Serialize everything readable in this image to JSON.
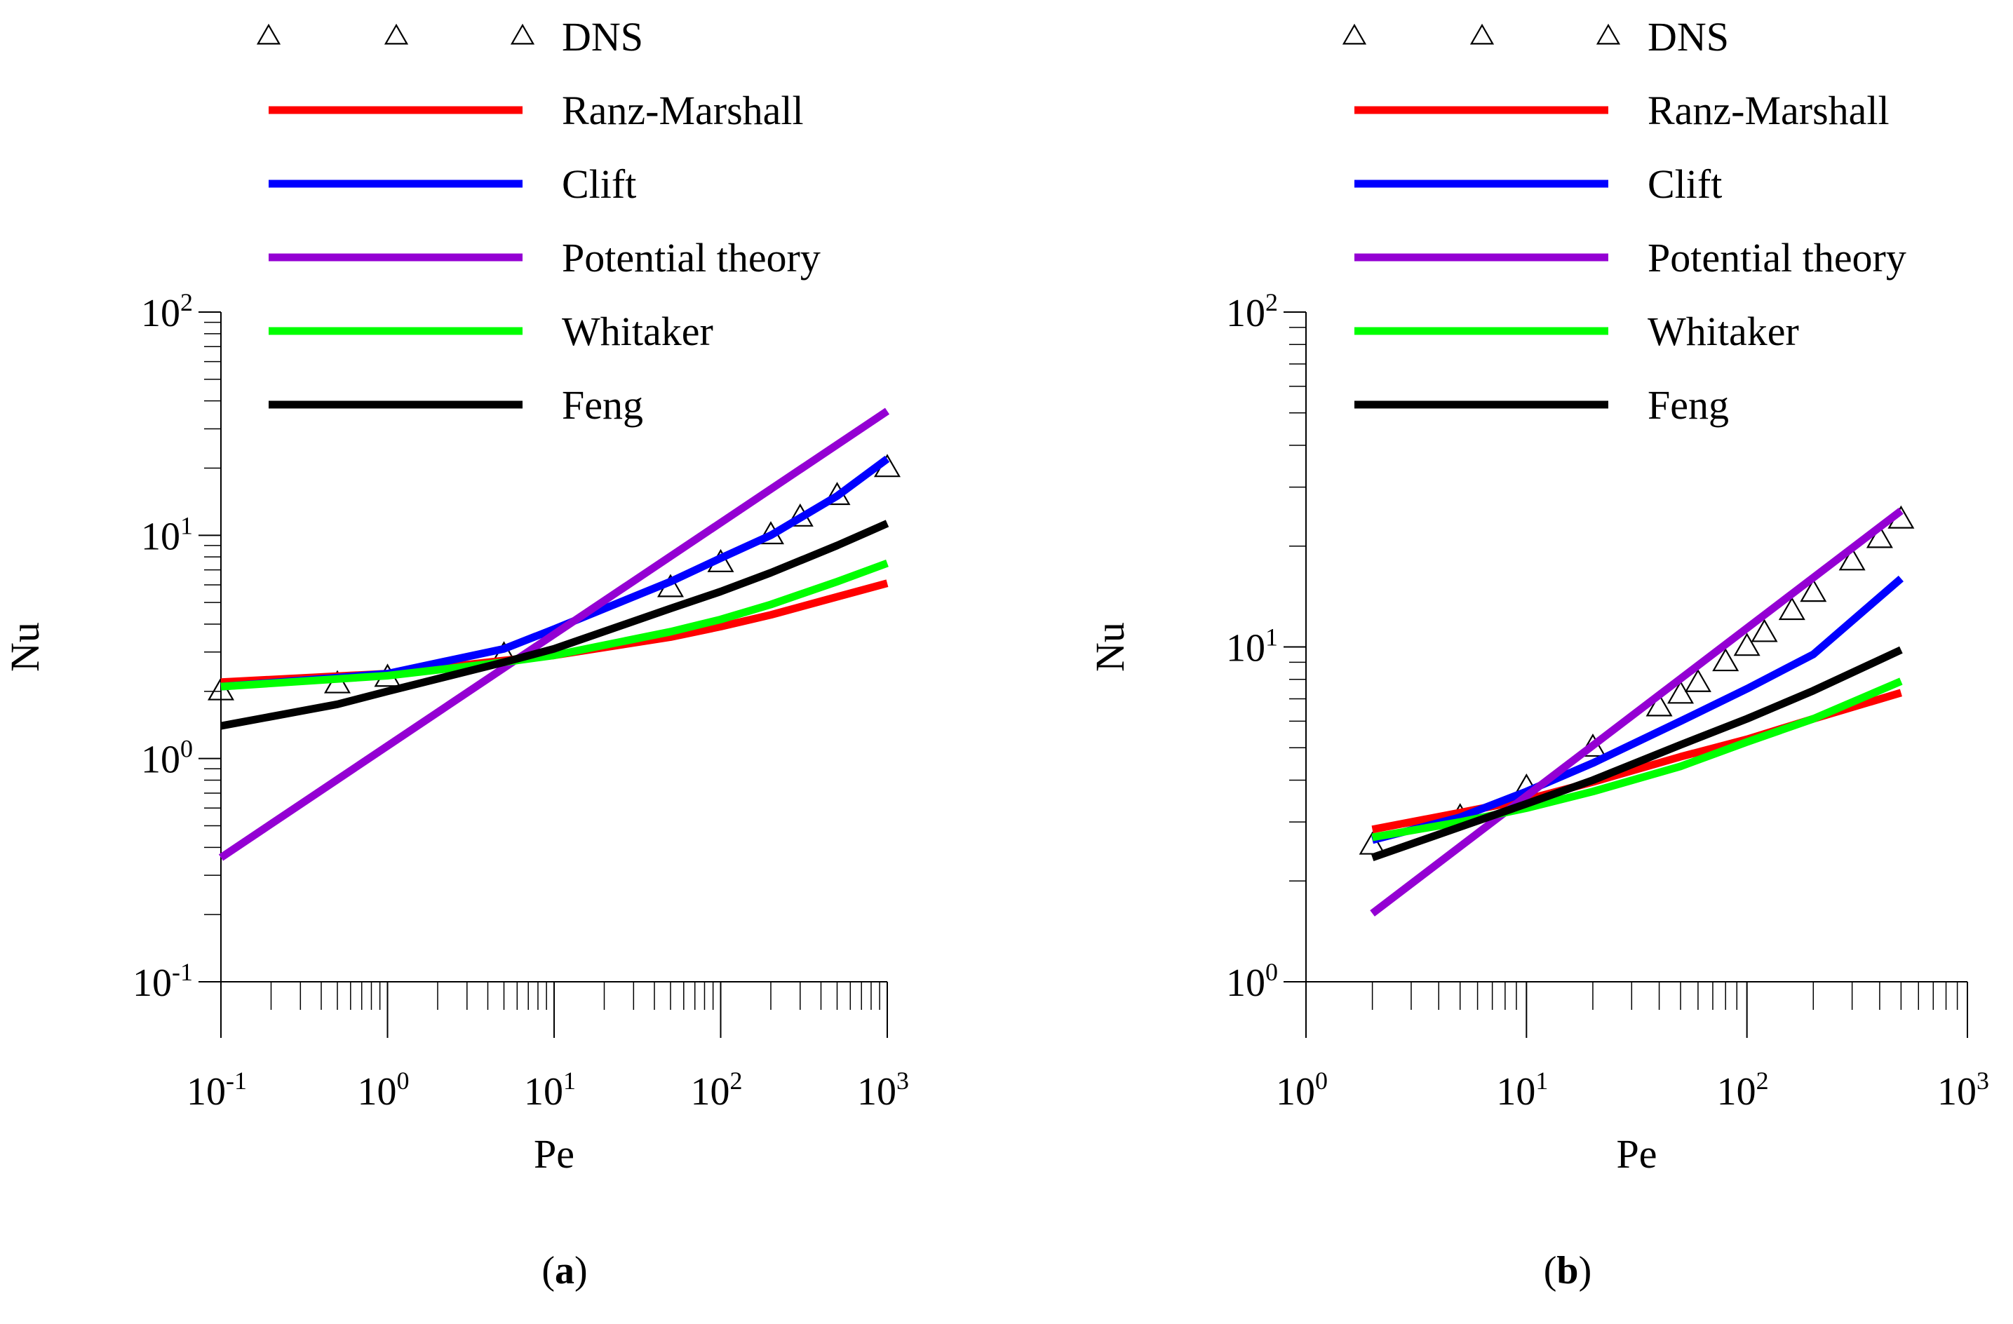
{
  "chart_data": [
    {
      "type": "line",
      "panel_label": "(a)",
      "xlabel": "Pe",
      "ylabel": "Nu",
      "xscale": "log",
      "yscale": "log",
      "xlim": [
        0.1,
        1000
      ],
      "ylim": [
        0.1,
        100
      ],
      "x_ticks": [
        {
          "base": "10",
          "exp": "-1"
        },
        {
          "base": "10",
          "exp": "0"
        },
        {
          "base": "10",
          "exp": "1"
        },
        {
          "base": "10",
          "exp": "2"
        },
        {
          "base": "10",
          "exp": "3"
        }
      ],
      "y_ticks": [
        {
          "base": "10",
          "exp": "-1"
        },
        {
          "base": "10",
          "exp": "0"
        },
        {
          "base": "10",
          "exp": "1"
        },
        {
          "base": "10",
          "exp": "2"
        }
      ],
      "legend_position": "top",
      "series": [
        {
          "name": "DNS",
          "kind": "markers",
          "marker": "triangle",
          "x": [
            0.1,
            0.5,
            1,
            5,
            50,
            100,
            200,
            300,
            500,
            1000
          ],
          "y": [
            2.0,
            2.15,
            2.3,
            2.9,
            5.8,
            7.5,
            10.0,
            12.0,
            15.0,
            20.0
          ]
        },
        {
          "name": "Ranz-Marshall",
          "color": "#ff0000",
          "x": [
            0.1,
            1,
            5,
            10,
            50,
            100,
            200,
            500,
            1000
          ],
          "y": [
            2.2,
            2.4,
            2.75,
            2.9,
            3.5,
            3.9,
            4.4,
            5.3,
            6.1
          ]
        },
        {
          "name": "Clift",
          "color": "#0000ff",
          "x": [
            0.1,
            1,
            5,
            10,
            50,
            100,
            200,
            500,
            1000
          ],
          "y": [
            2.1,
            2.4,
            3.1,
            3.8,
            6.2,
            7.9,
            10.0,
            15.0,
            22.0
          ]
        },
        {
          "name": "Potential theory",
          "color": "#9400d3",
          "x": [
            0.1,
            1000
          ],
          "y": [
            0.36,
            36.0
          ]
        },
        {
          "name": "Whitaker",
          "color": "#00ff00",
          "x": [
            0.1,
            1,
            5,
            10,
            50,
            100,
            200,
            500,
            1000
          ],
          "y": [
            2.1,
            2.35,
            2.7,
            2.9,
            3.7,
            4.2,
            4.9,
            6.2,
            7.5
          ]
        },
        {
          "name": "Feng",
          "color": "#000000",
          "x": [
            0.1,
            0.5,
            1,
            5,
            10,
            50,
            100,
            200,
            500,
            1000
          ],
          "y": [
            1.4,
            1.75,
            2.0,
            2.7,
            3.1,
            4.7,
            5.6,
            6.8,
            9.0,
            11.3
          ]
        }
      ]
    },
    {
      "type": "line",
      "panel_label": "(b)",
      "xlabel": "Pe",
      "ylabel": "Nu",
      "xscale": "log",
      "yscale": "log",
      "xlim": [
        1,
        1000
      ],
      "ylim": [
        1,
        100
      ],
      "x_ticks": [
        {
          "base": "10",
          "exp": "0"
        },
        {
          "base": "10",
          "exp": "1"
        },
        {
          "base": "10",
          "exp": "2"
        },
        {
          "base": "10",
          "exp": "3"
        }
      ],
      "y_ticks": [
        {
          "base": "10",
          "exp": "0"
        },
        {
          "base": "10",
          "exp": "1"
        },
        {
          "base": "10",
          "exp": "2"
        }
      ],
      "legend_position": "top",
      "series": [
        {
          "name": "DNS",
          "kind": "markers",
          "marker": "triangle",
          "x": [
            2,
            5,
            10,
            20,
            40,
            50,
            60,
            80,
            100,
            120,
            160,
            200,
            300,
            400,
            500
          ],
          "y": [
            2.55,
            3.1,
            3.8,
            5.0,
            6.6,
            7.2,
            7.8,
            9.0,
            10.0,
            11.0,
            12.8,
            14.5,
            18.0,
            21.0,
            24.0
          ]
        },
        {
          "name": "Ranz-Marshall",
          "color": "#ff0000",
          "x": [
            2,
            5,
            10,
            20,
            50,
            100,
            200,
            500
          ],
          "y": [
            2.85,
            3.2,
            3.5,
            3.95,
            4.7,
            5.3,
            6.1,
            7.3
          ]
        },
        {
          "name": "Clift",
          "color": "#0000ff",
          "x": [
            2,
            5,
            10,
            20,
            50,
            100,
            200,
            500
          ],
          "y": [
            2.65,
            3.1,
            3.7,
            4.5,
            6.0,
            7.5,
            9.5,
            16.0
          ]
        },
        {
          "name": "Potential theory",
          "color": "#9400d3",
          "x": [
            2,
            500
          ],
          "y": [
            1.6,
            25.5
          ]
        },
        {
          "name": "Whitaker",
          "color": "#00ff00",
          "x": [
            2,
            5,
            10,
            20,
            50,
            100,
            200,
            500
          ],
          "y": [
            2.7,
            3.0,
            3.3,
            3.7,
            4.4,
            5.2,
            6.1,
            7.9
          ]
        },
        {
          "name": "Feng",
          "color": "#000000",
          "x": [
            2,
            5,
            10,
            20,
            50,
            100,
            200,
            500
          ],
          "y": [
            2.35,
            2.9,
            3.4,
            4.0,
            5.1,
            6.1,
            7.4,
            9.8
          ]
        }
      ]
    }
  ]
}
